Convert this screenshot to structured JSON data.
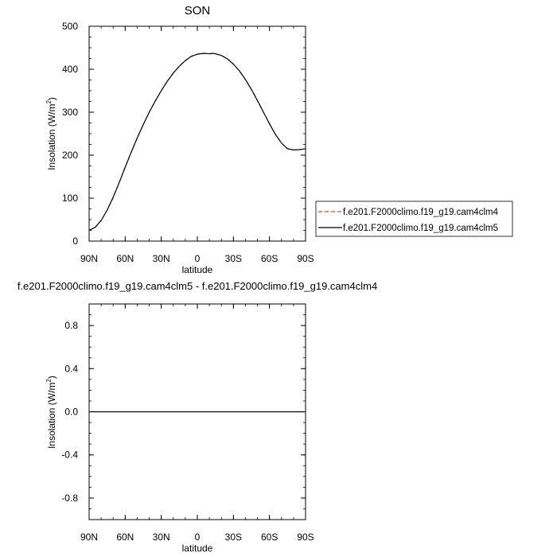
{
  "chart_data": [
    {
      "type": "line",
      "title": "SON",
      "xlabel": "latitude",
      "ylabel": "Insolation (W/m",
      "ylabel_sup": "2",
      "ylabel_end": ")",
      "xlim": [
        -90,
        90
      ],
      "ylim": [
        0,
        500
      ],
      "x_ticks": [
        -90,
        -60,
        -30,
        0,
        30,
        60,
        90
      ],
      "x_tick_labels": [
        "90N",
        "60N",
        "30N",
        "0",
        "30S",
        "60S",
        "90S"
      ],
      "y_ticks": [
        0,
        100,
        200,
        300,
        400,
        500
      ],
      "y_tick_labels": [
        "0",
        "100",
        "200",
        "300",
        "400",
        "500"
      ],
      "legend_position": "outside-right",
      "x": [
        -90,
        -85,
        -80,
        -75,
        -70,
        -65,
        -60,
        -55,
        -50,
        -45,
        -40,
        -35,
        -30,
        -25,
        -20,
        -15,
        -10,
        -5,
        0,
        5,
        10,
        13,
        15,
        20,
        25,
        30,
        35,
        40,
        45,
        50,
        55,
        60,
        65,
        70,
        75,
        80,
        85,
        90
      ],
      "series": [
        {
          "name": "f.e201.F2000climo.f19_g19.cam4clm4",
          "color": "#e0403a",
          "style": "dashed",
          "values": [
            25,
            32,
            48,
            72,
            102,
            136,
            172,
            207,
            240,
            271,
            300,
            326,
            350,
            372,
            391,
            407,
            420,
            430,
            435,
            437,
            436,
            437,
            436,
            432,
            424,
            412,
            396,
            376,
            353,
            327,
            300,
            273,
            248,
            228,
            215,
            212,
            213,
            215
          ]
        },
        {
          "name": "f.e201.F2000climo.f19_g19.cam4clm5",
          "color": "#000000",
          "style": "solid",
          "values": [
            25,
            32,
            48,
            72,
            102,
            136,
            172,
            207,
            240,
            271,
            300,
            326,
            350,
            372,
            391,
            407,
            420,
            430,
            435,
            437,
            436,
            437,
            436,
            432,
            424,
            412,
            396,
            376,
            353,
            327,
            300,
            273,
            248,
            228,
            215,
            212,
            213,
            215
          ]
        }
      ]
    },
    {
      "type": "line",
      "title": "f.e201.F2000climo.f19_g19.cam4clm5 - f.e201.F2000climo.f19_g19.cam4clm4",
      "xlabel": "latitude",
      "ylabel": "Insolation (W/m",
      "ylabel_sup": "2",
      "ylabel_end": ")",
      "xlim": [
        -90,
        90
      ],
      "ylim": [
        -1,
        1
      ],
      "x_ticks": [
        -90,
        -60,
        -30,
        0,
        30,
        60,
        90
      ],
      "x_tick_labels": [
        "90N",
        "60N",
        "30N",
        "0",
        "30S",
        "60S",
        "90S"
      ],
      "y_ticks": [
        -0.8,
        -0.4,
        0.0,
        0.4,
        0.8
      ],
      "y_tick_labels": [
        "-0.8",
        "-0.4",
        "0.0",
        "0.4",
        "0.8"
      ],
      "x": [
        -90,
        90
      ],
      "series": [
        {
          "color": "#000000",
          "style": "solid",
          "values": [
            0,
            0
          ]
        }
      ]
    }
  ]
}
